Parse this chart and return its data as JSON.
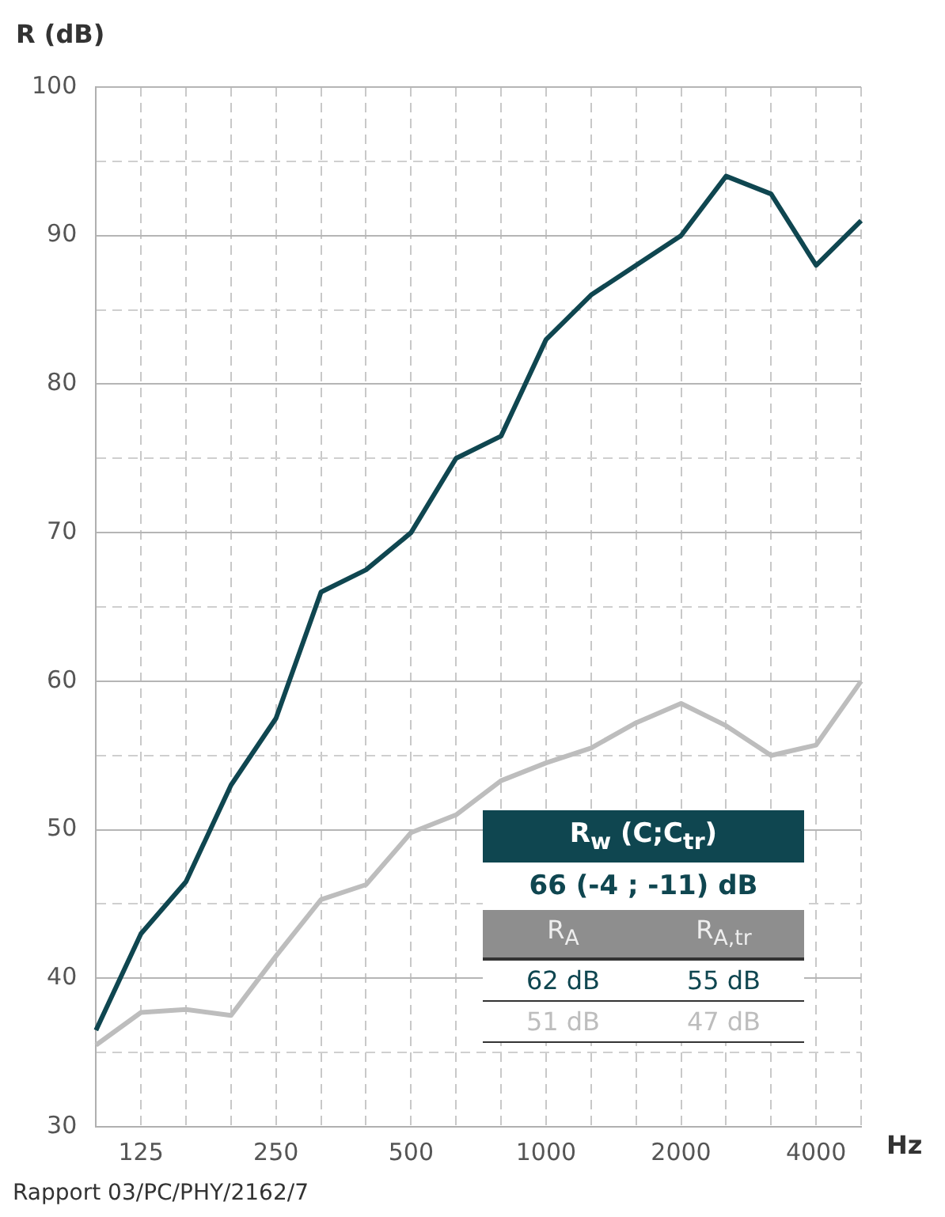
{
  "chart_data": {
    "type": "line",
    "ylabel": "R (dB)",
    "xlabel": "Hz",
    "categories": [
      null,
      "125",
      null,
      null,
      "250",
      null,
      null,
      "500",
      null,
      null,
      "1000",
      null,
      null,
      "2000",
      null,
      null,
      "4000",
      null
    ],
    "series": [
      {
        "color": "#0f4650",
        "values": [
          36.5,
          43,
          46.5,
          53,
          57.5,
          66,
          67.5,
          70,
          75,
          76.5,
          83,
          86,
          88,
          90,
          94,
          92.8,
          88,
          91
        ]
      },
      {
        "color": "#bdbdbd",
        "values": [
          35.5,
          37.7,
          37.9,
          37.5,
          41.5,
          45.3,
          46.3,
          49.8,
          51,
          53.3,
          54.5,
          55.5,
          57.2,
          58.5,
          57,
          55,
          55.7,
          60
        ]
      }
    ],
    "ylim": [
      30,
      100
    ],
    "yticks": [
      30,
      {
        "value": 35,
        "label": null
      },
      40,
      {
        "value": 45,
        "label": null
      },
      50,
      {
        "value": 55,
        "label": null
      },
      60,
      {
        "value": 65,
        "label": null
      },
      70,
      {
        "value": 75,
        "label": null
      },
      80,
      {
        "value": 85,
        "label": null
      },
      90,
      {
        "value": 95,
        "label": null
      },
      100
    ],
    "grid": true,
    "legend": false,
    "marker": "none",
    "line_style": "solid",
    "annotations": [
      "R$_{w}$ (C;C$_{tr}$)",
      "66 (-4 ; -11) dB",
      "R$_{A}$",
      "R$_{A,tr}$",
      "62 dB",
      "55 dB",
      "51 dB",
      "47 dB",
      "Rapport 03/PC/PHY/2162/7"
    ]
  }
}
